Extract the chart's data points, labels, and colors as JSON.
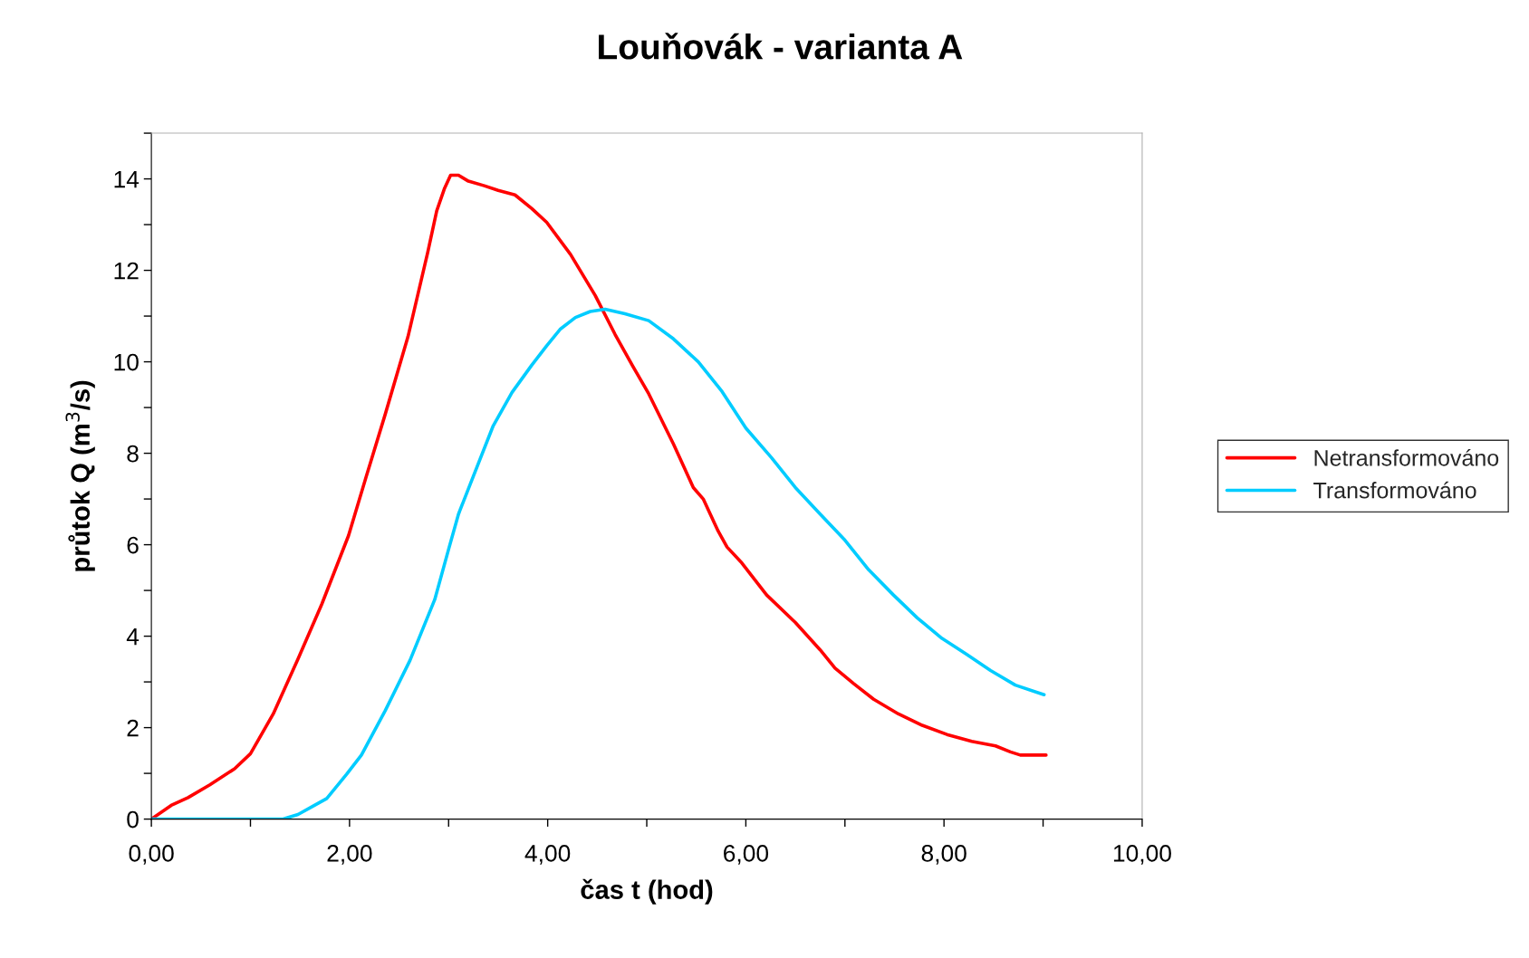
{
  "chart_data": {
    "type": "line",
    "title": "Louňovák - varianta A",
    "xlabel": "čas t (hod)",
    "ylabel": "průtok Q (m$^{3}$/s)",
    "xlim": [
      0,
      10
    ],
    "xticks": [
      {
        "value": 0,
        "label": "0,00"
      },
      {
        "value": 1,
        "label": null
      },
      {
        "value": 2,
        "label": "2,00"
      },
      {
        "value": 3,
        "label": null
      },
      {
        "value": 4,
        "label": "4,00"
      },
      {
        "value": 5,
        "label": null
      },
      {
        "value": 6,
        "label": "6,00"
      },
      {
        "value": 7,
        "label": null
      },
      {
        "value": 8,
        "label": "8,00"
      },
      {
        "value": 9,
        "label": null
      },
      {
        "value": 10,
        "label": "10,00"
      }
    ],
    "ylim": [
      0,
      15
    ],
    "yticks": [
      0,
      {
        "value": 1,
        "label": null
      },
      2,
      {
        "value": 3,
        "label": null
      },
      4,
      {
        "value": 5,
        "label": null
      },
      6,
      {
        "value": 7,
        "label": null
      },
      8,
      {
        "value": 9,
        "label": null
      },
      10,
      {
        "value": 11,
        "label": null
      },
      12,
      {
        "value": 13,
        "label": null
      },
      14,
      {
        "value": 15,
        "label": null
      }
    ],
    "grid": false,
    "legend": "right",
    "marker": "none",
    "line_style": "solid",
    "series": [
      {
        "name": "Netransformováno",
        "color": "#ff0000",
        "x": [
          0,
          0.2,
          0.37,
          0.59,
          0.84,
          1.0,
          1.08,
          1.23,
          1.48,
          1.72,
          1.99,
          2.17,
          2.36,
          2.59,
          2.79,
          2.88,
          2.96,
          3.02,
          3.1,
          3.2,
          3.36,
          3.5,
          3.67,
          3.84,
          3.99,
          4.23,
          4.48,
          4.68,
          4.86,
          5.02,
          5.27,
          5.47,
          5.57,
          5.72,
          5.81,
          5.96,
          6.21,
          6.5,
          6.75,
          6.9,
          7.09,
          7.29,
          7.54,
          7.78,
          8.03,
          8.28,
          8.52,
          8.67,
          8.77,
          9.03
        ],
        "values": [
          0,
          0.3,
          0.47,
          0.75,
          1.1,
          1.43,
          1.73,
          2.3,
          3.5,
          4.7,
          6.2,
          7.5,
          8.85,
          10.55,
          12.4,
          13.3,
          13.8,
          14.08,
          14.08,
          13.95,
          13.85,
          13.75,
          13.65,
          13.35,
          13.05,
          12.35,
          11.45,
          10.6,
          9.9,
          9.3,
          8.2,
          7.25,
          7.0,
          6.3,
          5.95,
          5.6,
          4.9,
          4.3,
          3.7,
          3.3,
          2.96,
          2.62,
          2.3,
          2.05,
          1.85,
          1.7,
          1.6,
          1.47,
          1.4,
          1.4
        ]
      },
      {
        "name": "Transformováno",
        "color": "#00ccff",
        "x": [
          0,
          1.33,
          1.48,
          1.63,
          1.77,
          1.97,
          2.12,
          2.36,
          2.61,
          2.86,
          3.0,
          3.1,
          3.25,
          3.45,
          3.64,
          3.84,
          3.99,
          4.13,
          4.28,
          4.43,
          4.58,
          4.78,
          5.02,
          5.27,
          5.52,
          5.76,
          6.0,
          6.26,
          6.5,
          6.75,
          7.0,
          7.24,
          7.49,
          7.73,
          7.98,
          8.23,
          8.47,
          8.72,
          9.01
        ],
        "values": [
          0,
          0,
          0.1,
          0.28,
          0.45,
          0.98,
          1.4,
          2.37,
          3.47,
          4.8,
          5.9,
          6.67,
          7.5,
          8.6,
          9.33,
          9.93,
          10.35,
          10.72,
          10.97,
          11.1,
          11.15,
          11.05,
          10.9,
          10.5,
          10.0,
          9.35,
          8.55,
          7.9,
          7.25,
          6.67,
          6.1,
          5.45,
          4.9,
          4.4,
          3.95,
          3.6,
          3.25,
          2.93,
          2.72
        ]
      }
    ]
  }
}
